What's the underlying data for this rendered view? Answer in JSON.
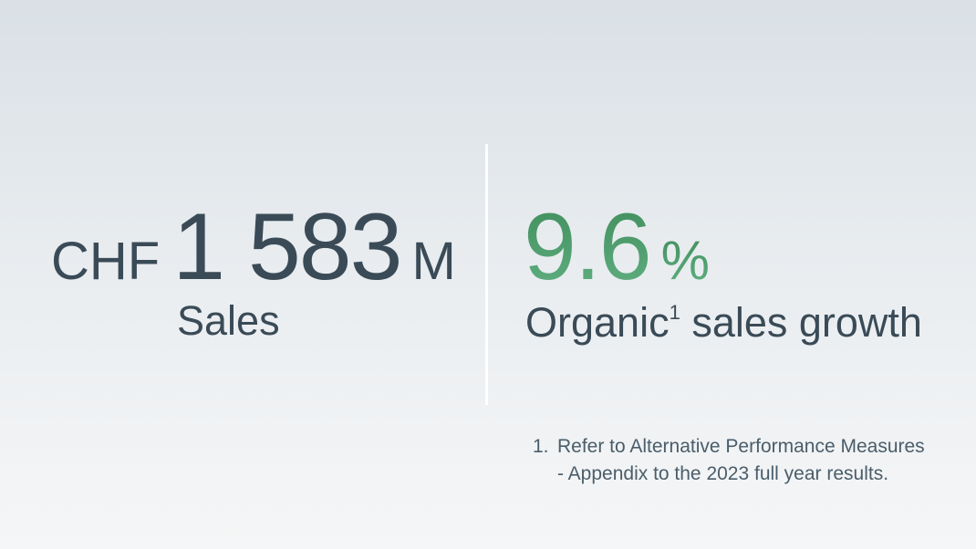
{
  "sales": {
    "currency": "CHF",
    "value": "1 583",
    "unit": "M",
    "label": "Sales"
  },
  "growth": {
    "value": "9.6",
    "unit": "%",
    "label_pre": "Organic",
    "footnote_ref": "1",
    "label_post": " sales growth"
  },
  "footnote": {
    "number": "1.",
    "text": "Refer to Alternative Performance Measures - Appendix to the 2023 full year results."
  },
  "colors": {
    "text": "#3a4b57",
    "accent_green": "#4f9f6e"
  }
}
